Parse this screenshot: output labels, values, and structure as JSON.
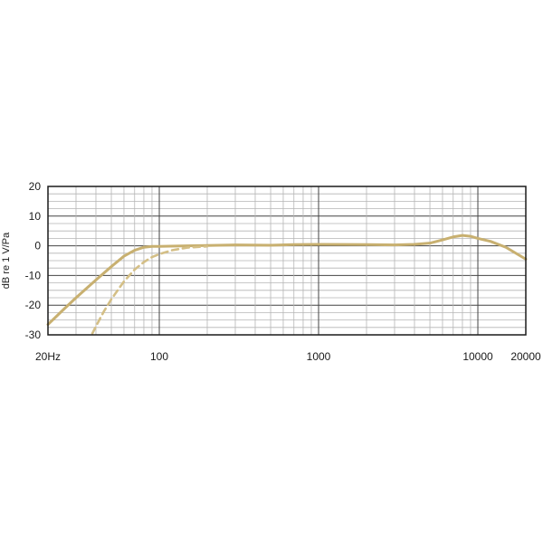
{
  "chart_data": {
    "type": "line",
    "title": "",
    "xlabel": "",
    "ylabel": "dB re 1 V/Pa",
    "xscale": "log",
    "xlim": [
      20,
      20000
    ],
    "ylim": [
      -30,
      20
    ],
    "grid": true,
    "x_tick_labels": [
      {
        "value": 20,
        "label": "20Hz"
      },
      {
        "value": 100,
        "label": "100"
      },
      {
        "value": 1000,
        "label": "1000"
      },
      {
        "value": 10000,
        "label": "10000"
      },
      {
        "value": 20000,
        "label": "20000"
      }
    ],
    "y_ticks": [
      20,
      10,
      0,
      -10,
      -20,
      -30
    ],
    "y_tick_labels": [
      "20",
      "10",
      "0",
      "-10",
      "-20",
      "-30"
    ],
    "series": [
      {
        "style": "solid",
        "color": "#c8b070",
        "x": [
          20,
          25,
          30,
          40,
          50,
          60,
          70,
          80,
          90,
          100,
          150,
          200,
          300,
          500,
          700,
          1000,
          2000,
          3000,
          4000,
          5000,
          6000,
          7000,
          8000,
          9000,
          10000,
          12000,
          15000,
          20000
        ],
        "y": [
          -26.5,
          -21.5,
          -17.5,
          -11.5,
          -7,
          -3.5,
          -1.5,
          -0.5,
          -0.2,
          -0.2,
          0,
          0.1,
          0.3,
          0.2,
          0.4,
          0.5,
          0.4,
          0.3,
          0.5,
          0.9,
          2.0,
          3.0,
          3.5,
          3.2,
          2.5,
          1.5,
          -0.5,
          -4.5
        ]
      },
      {
        "style": "dashed",
        "color": "#d4bf86",
        "x": [
          38,
          42,
          45,
          50,
          60,
          70,
          80,
          90,
          100,
          120,
          150,
          200
        ],
        "y": [
          -29.5,
          -25,
          -22,
          -18,
          -12,
          -8,
          -5.5,
          -3.8,
          -2.8,
          -1.5,
          -0.6,
          -0.2
        ]
      }
    ]
  }
}
